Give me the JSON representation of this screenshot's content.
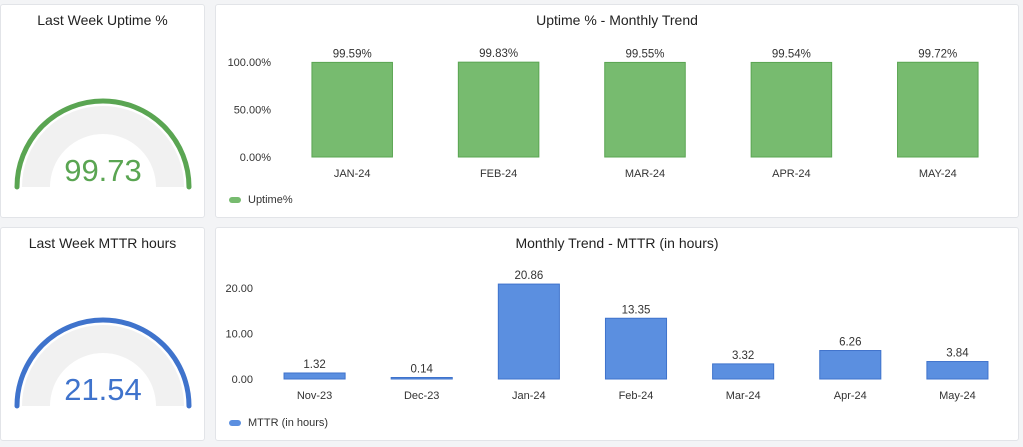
{
  "colors": {
    "uptime": "#77bb6f",
    "uptime_stroke": "#5aa552",
    "gauge_up": "#5aa552",
    "mttr": "#5b8fe0",
    "mttr_stroke": "#3f73cc",
    "gauge_mttr": "#3f73cc",
    "gauge_track": "#f1f1f1",
    "axis_text": "#333333"
  },
  "gauge_uptime": {
    "title": "Last Week Uptime %",
    "value": "99.73"
  },
  "gauge_mttr": {
    "title": "Last Week MTTR hours",
    "value": "21.54"
  },
  "uptime_chart": {
    "title": "Uptime % - Monthly Trend",
    "legend": "Uptime%"
  },
  "mttr_chart": {
    "title": "Monthly Trend - MTTR (in hours)",
    "legend": "MTTR (in hours)"
  },
  "chart_data": [
    {
      "type": "gauge",
      "title": "Last Week Uptime %",
      "value": 99.73
    },
    {
      "type": "bar",
      "title": "Uptime % - Monthly Trend",
      "categories": [
        "JAN-24",
        "FEB-24",
        "MAR-24",
        "APR-24",
        "MAY-24"
      ],
      "series": [
        {
          "name": "Uptime%",
          "values": [
            99.59,
            99.83,
            99.55,
            99.54,
            99.72
          ]
        }
      ],
      "data_labels": [
        "99.59%",
        "99.83%",
        "99.55%",
        "99.54%",
        "99.72%"
      ],
      "yticks": [
        "0.00%",
        "50.00%",
        "100.00%"
      ],
      "ylim": [
        0,
        100
      ],
      "legend": "bottom-left",
      "grid": false
    },
    {
      "type": "gauge",
      "title": "Last Week MTTR hours",
      "value": 21.54
    },
    {
      "type": "bar",
      "title": "Monthly Trend - MTTR (in hours)",
      "categories": [
        "Nov-23",
        "Dec-23",
        "Jan-24",
        "Feb-24",
        "Mar-24",
        "Apr-24",
        "May-24"
      ],
      "series": [
        {
          "name": "MTTR (in hours)",
          "values": [
            1.32,
            0.14,
            20.86,
            13.35,
            3.32,
            6.26,
            3.84
          ]
        }
      ],
      "data_labels": [
        "1.32",
        "0.14",
        "20.86",
        "13.35",
        "3.32",
        "6.26",
        "3.84"
      ],
      "yticks": [
        "0.00",
        "10.00",
        "20.00"
      ],
      "ylim": [
        0,
        20
      ],
      "legend": "bottom-left",
      "grid": false
    }
  ]
}
